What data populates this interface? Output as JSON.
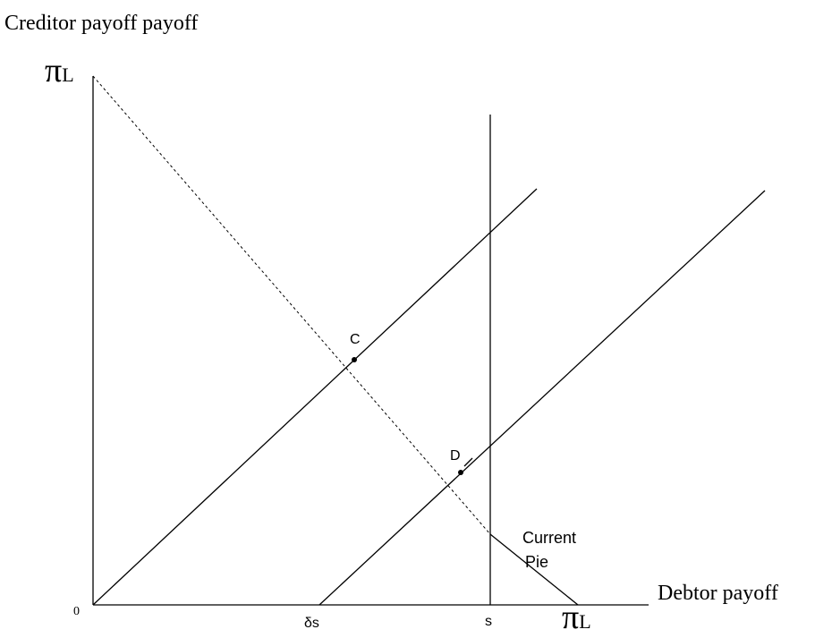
{
  "y_axis_label": "Creditor payoff payoff",
  "x_axis_label": "Debtor payoff",
  "origin_label": "0",
  "y_max_label": {
    "symbol": "π",
    "sub": "L"
  },
  "x_max_label": {
    "symbol": "π",
    "sub": "L"
  },
  "x_ticks": [
    "δs",
    "s"
  ],
  "points": [
    {
      "label": "C"
    },
    {
      "label": "D"
    }
  ],
  "annotation": [
    "Current",
    "Pie"
  ]
}
